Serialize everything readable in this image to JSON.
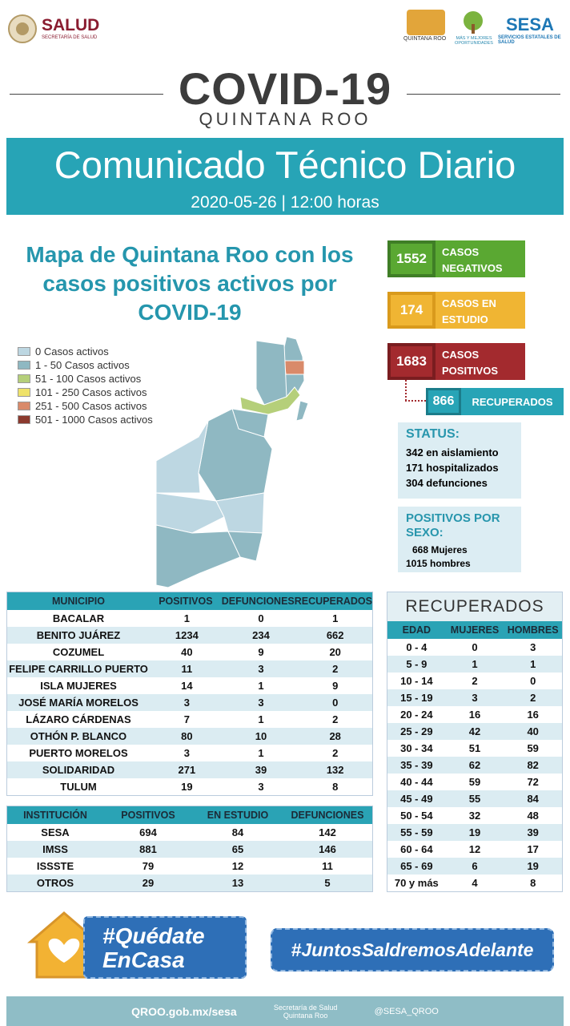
{
  "header": {
    "salud": "SALUD",
    "salud_sub": "SECRETARÍA DE SALUD",
    "qroo": "QUINTANA ROO",
    "oportunidades": "MÁS Y MEJORES OPORTUNIDADES",
    "sesa": "SESA",
    "sesa_sub": "SERVICIOS ESTATALES DE SALUD"
  },
  "title": {
    "main": "COVID-19",
    "sub": "QUINTANA ROO"
  },
  "banner": {
    "title": "Comunicado Técnico Diario",
    "date": "2020-05-26 | 12:00 horas"
  },
  "map": {
    "title": "Mapa de Quintana Roo con los casos positivos activos por COVID-19",
    "legend": [
      {
        "label": "0 Casos activos",
        "color": "#bdd7e2"
      },
      {
        "label": "1 - 50 Casos activos",
        "color": "#8fb8c2"
      },
      {
        "label": "51 - 100 Casos activos",
        "color": "#b5cf7a"
      },
      {
        "label": "101 - 250 Casos activos",
        "color": "#efe26a"
      },
      {
        "label": "251 - 500 Casos activos",
        "color": "#d98a6a"
      },
      {
        "label": "501 - 1000 Casos activos",
        "color": "#8b3a2e"
      }
    ]
  },
  "stats": [
    {
      "value": 1552,
      "label": "CASOS NEGATIVOS"
    },
    {
      "value": 174,
      "label": "CASOS EN ESTUDIO"
    },
    {
      "value": 1683,
      "label": "CASOS POSITIVOS"
    }
  ],
  "recuperados": {
    "value": 866,
    "label": "RECUPERADOS"
  },
  "status": {
    "title": "STATUS:",
    "lines": [
      "342 en aislamiento",
      "171 hospitalizados",
      "304 defunciones"
    ]
  },
  "sexo": {
    "title": "POSITIVOS POR SEXO:",
    "lines": [
      "668 Mujeres",
      "1015 hombres"
    ]
  },
  "municipios": {
    "header": [
      "MUNICIPIO",
      "POSITIVOS",
      "DEFUNCIONES",
      "RECUPERADOS"
    ],
    "rows": [
      [
        "BACALAR",
        1,
        0,
        1
      ],
      [
        "BENITO JUÁREZ",
        1234,
        234,
        662
      ],
      [
        "COZUMEL",
        40,
        9,
        20
      ],
      [
        "FELIPE CARRILLO PUERTO",
        11,
        3,
        2
      ],
      [
        "ISLA MUJERES",
        14,
        1,
        9
      ],
      [
        "JOSÉ MARÍA MORELOS",
        3,
        3,
        0
      ],
      [
        "LÁZARO CÁRDENAS",
        7,
        1,
        2
      ],
      [
        "OTHÓN P. BLANCO",
        80,
        10,
        28
      ],
      [
        "PUERTO MORELOS",
        3,
        1,
        2
      ],
      [
        "SOLIDARIDAD",
        271,
        39,
        132
      ],
      [
        "TULUM",
        19,
        3,
        8
      ]
    ]
  },
  "instituciones": {
    "header": [
      "INSTITUCIÓN",
      "POSITIVOS",
      "EN ESTUDIO",
      "DEFUNCIONES"
    ],
    "rows": [
      [
        "SESA",
        694,
        84,
        142
      ],
      [
        "IMSS",
        881,
        65,
        146
      ],
      [
        "ISSSTE",
        79,
        12,
        11
      ],
      [
        "OTROS",
        29,
        13,
        5
      ]
    ]
  },
  "recuperados_edad": {
    "title": "RECUPERADOS",
    "header": [
      "EDAD",
      "MUJERES",
      "HOMBRES"
    ],
    "rows": [
      [
        "0 - 4",
        0,
        3
      ],
      [
        "5 - 9",
        1,
        1
      ],
      [
        "10 - 14",
        2,
        0
      ],
      [
        "15 - 19",
        3,
        2
      ],
      [
        "20 - 24",
        16,
        16
      ],
      [
        "25 - 29",
        42,
        40
      ],
      [
        "30 - 34",
        51,
        59
      ],
      [
        "35 - 39",
        62,
        82
      ],
      [
        "40 - 44",
        59,
        72
      ],
      [
        "45 - 49",
        55,
        84
      ],
      [
        "50 - 54",
        32,
        48
      ],
      [
        "55 - 59",
        19,
        39
      ],
      [
        "60 - 64",
        12,
        17
      ],
      [
        "65 - 69",
        6,
        19
      ],
      [
        "70 y más",
        4,
        8
      ]
    ]
  },
  "footer": {
    "quedate_1": "#Quédate",
    "quedate_2": "EnCasa",
    "juntos": "#JuntosSaldremosAdelante",
    "website": "QROO.gob.mx/sesa",
    "facebook": "Secretaría de Salud Quintana Roo",
    "twitter": "@SESA_QROO"
  }
}
